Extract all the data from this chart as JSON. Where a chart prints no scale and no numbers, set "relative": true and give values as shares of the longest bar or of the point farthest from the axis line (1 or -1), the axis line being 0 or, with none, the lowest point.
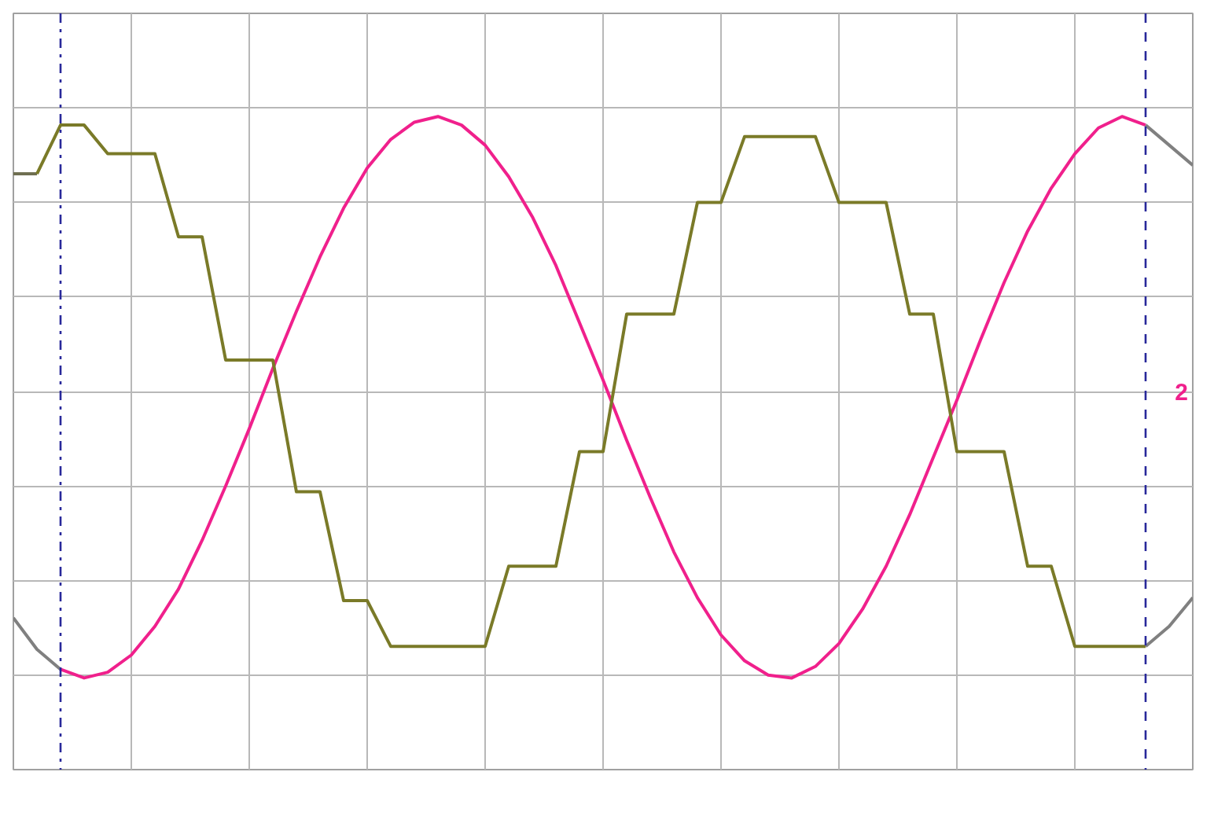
{
  "chart_data": {
    "type": "line",
    "relative": true,
    "tick_labels": false,
    "grid": true,
    "line_style": "solid",
    "marker": "none",
    "categories": [
      null,
      null,
      null,
      null,
      null,
      null,
      null,
      null,
      null,
      null,
      null,
      null,
      null,
      null,
      null,
      null,
      null,
      null,
      null,
      null,
      null,
      null,
      null,
      null,
      null,
      null,
      null,
      null,
      null,
      null,
      null,
      null,
      null,
      null,
      null,
      null,
      null,
      null,
      null,
      null,
      null,
      null,
      null,
      null,
      null,
      null,
      null,
      null,
      null,
      null,
      null
    ],
    "series": [
      {
        "color": "#808080",
        "values": [
          -0.79,
          -0.9,
          -0.97,
          null,
          null,
          null,
          null,
          null,
          null,
          null,
          null,
          null,
          null,
          null,
          null,
          null,
          null,
          null,
          null,
          null,
          null,
          null,
          null,
          null,
          null,
          null,
          null,
          null,
          null,
          null,
          null,
          null,
          null,
          null,
          null,
          null,
          null,
          null,
          null,
          null,
          null,
          null,
          null,
          null,
          null,
          null,
          null,
          null,
          null,
          null,
          null
        ]
      },
      {
        "color": "#f0208c",
        "values": [
          null,
          null,
          -0.97,
          -1.0,
          -0.98,
          -0.92,
          -0.82,
          -0.69,
          -0.52,
          -0.33,
          -0.13,
          0.08,
          0.28,
          0.47,
          0.64,
          0.78,
          0.88,
          0.94,
          0.96,
          0.93,
          0.86,
          0.75,
          0.61,
          0.44,
          0.24,
          0.04,
          -0.17,
          -0.37,
          -0.56,
          -0.72,
          -0.85,
          -0.94,
          -0.99,
          -1.0,
          -0.96,
          -0.88,
          -0.76,
          -0.61,
          -0.43,
          -0.23,
          -0.03,
          0.18,
          0.38,
          0.56,
          0.71,
          0.83,
          0.92,
          0.96,
          0.93,
          null,
          null
        ]
      },
      {
        "color": "#808080",
        "values": [
          null,
          null,
          null,
          null,
          null,
          null,
          null,
          null,
          null,
          null,
          null,
          null,
          null,
          null,
          null,
          null,
          null,
          null,
          null,
          null,
          null,
          null,
          null,
          null,
          null,
          null,
          null,
          null,
          null,
          null,
          null,
          null,
          null,
          null,
          null,
          null,
          null,
          null,
          null,
          null,
          null,
          null,
          null,
          null,
          null,
          null,
          null,
          null,
          0.93,
          0.86,
          0.79
        ]
      },
      {
        "color": "#6e6e50",
        "values": [
          0.76,
          0.76,
          null,
          null,
          null,
          null,
          null,
          null,
          null,
          null,
          null,
          null,
          null,
          null,
          null,
          null,
          null,
          null,
          null,
          null,
          null,
          null,
          null,
          null,
          null,
          null,
          null,
          null,
          null,
          null,
          null,
          null,
          null,
          null,
          null,
          null,
          null,
          null,
          null,
          null,
          null,
          null,
          null,
          null,
          null,
          null,
          null,
          null,
          null,
          null,
          null
        ]
      },
      {
        "color": "#7a7a28",
        "values": [
          null,
          0.76,
          0.93,
          0.93,
          0.83,
          0.83,
          0.83,
          0.54,
          0.54,
          0.11,
          0.11,
          0.11,
          -0.35,
          -0.35,
          -0.73,
          -0.73,
          -0.89,
          -0.89,
          -0.89,
          -0.89,
          -0.89,
          -0.61,
          -0.61,
          -0.61,
          -0.21,
          -0.21,
          0.27,
          0.27,
          0.27,
          0.66,
          0.66,
          0.89,
          0.89,
          0.89,
          0.89,
          0.66,
          0.66,
          0.66,
          0.27,
          0.27,
          -0.21,
          -0.21,
          -0.21,
          -0.61,
          -0.61,
          -0.89,
          -0.89,
          -0.89,
          -0.89,
          null,
          null
        ]
      },
      {
        "color": "#808080",
        "values": [
          null,
          null,
          null,
          null,
          null,
          null,
          null,
          null,
          null,
          null,
          null,
          null,
          null,
          null,
          null,
          null,
          null,
          null,
          null,
          null,
          null,
          null,
          null,
          null,
          null,
          null,
          null,
          null,
          null,
          null,
          null,
          null,
          null,
          null,
          null,
          null,
          null,
          null,
          null,
          null,
          null,
          null,
          null,
          null,
          null,
          null,
          null,
          null,
          -0.89,
          -0.82,
          -0.72
        ]
      }
    ],
    "annotations": [
      "2"
    ]
  }
}
